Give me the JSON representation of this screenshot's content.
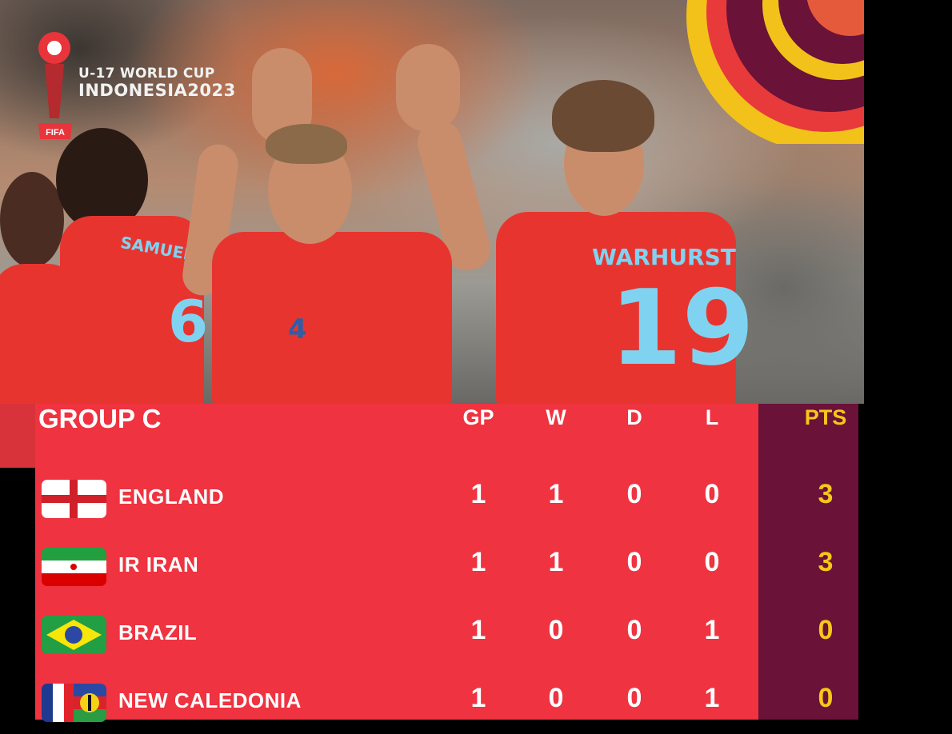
{
  "header": {
    "event_line1": "U-17 WORLD CUP",
    "event_line2": "INDONESIA2023",
    "org": "FIFA"
  },
  "photo": {
    "jersey_names": [
      "SAMUELS",
      "WARHURST"
    ],
    "jersey_numbers": [
      "6",
      "4",
      "19"
    ]
  },
  "standings": {
    "group": "GROUP C",
    "columns": [
      "GP",
      "W",
      "D",
      "L",
      "PTS"
    ],
    "rows": [
      {
        "team": "ENGLAND",
        "flag": "england-flag",
        "gp": "1",
        "w": "1",
        "d": "0",
        "l": "0",
        "pts": "3"
      },
      {
        "team": "IR IRAN",
        "flag": "iran-flag",
        "gp": "1",
        "w": "1",
        "d": "0",
        "l": "0",
        "pts": "3"
      },
      {
        "team": "BRAZIL",
        "flag": "brazil-flag",
        "gp": "1",
        "w": "0",
        "d": "0",
        "l": "1",
        "pts": "0"
      },
      {
        "team": "NEW CALEDONIA",
        "flag": "new-caledonia-flag",
        "gp": "1",
        "w": "0",
        "d": "0",
        "l": "1",
        "pts": "0"
      }
    ]
  },
  "colors": {
    "table_red": "#ef3340",
    "pts_column": "#6a1238",
    "pts_text": "#f5c71a"
  }
}
